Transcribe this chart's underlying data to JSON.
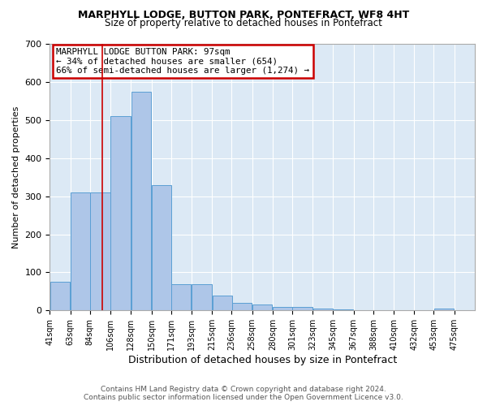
{
  "title1": "MARPHYLL LODGE, BUTTON PARK, PONTEFRACT, WF8 4HT",
  "title2": "Size of property relative to detached houses in Pontefract",
  "xlabel": "Distribution of detached houses by size in Pontefract",
  "ylabel": "Number of detached properties",
  "annotation_line1": "MARPHYLL LODGE BUTTON PARK: 97sqm",
  "annotation_line2": "← 34% of detached houses are smaller (654)",
  "annotation_line3": "66% of semi-detached houses are larger (1,274) →",
  "property_size": 97,
  "bar_left_edges": [
    41,
    63,
    84,
    106,
    128,
    150,
    171,
    193,
    215,
    236,
    258,
    280,
    301,
    323,
    345,
    367,
    388,
    410,
    432,
    453
  ],
  "bar_heights": [
    75,
    310,
    310,
    510,
    575,
    330,
    70,
    70,
    40,
    20,
    15,
    10,
    10,
    5,
    2,
    1,
    1,
    1,
    1,
    5
  ],
  "bin_width": 22,
  "bar_color": "#aec6e8",
  "bar_edge_color": "#5a9fd4",
  "vline_color": "#cc0000",
  "background_color": "#dce9f5",
  "grid_color": "#ffffff",
  "annotation_box_color": "#ffffff",
  "annotation_box_edge": "#cc0000",
  "ylim": [
    0,
    700
  ],
  "xlim": [
    41,
    497
  ],
  "tick_labels": [
    "41sqm",
    "63sqm",
    "84sqm",
    "106sqm",
    "128sqm",
    "150sqm",
    "171sqm",
    "193sqm",
    "215sqm",
    "236sqm",
    "258sqm",
    "280sqm",
    "301sqm",
    "323sqm",
    "345sqm",
    "367sqm",
    "388sqm",
    "410sqm",
    "432sqm",
    "453sqm",
    "475sqm"
  ],
  "tick_positions": [
    41,
    63,
    84,
    106,
    128,
    150,
    171,
    193,
    215,
    236,
    258,
    280,
    301,
    323,
    345,
    367,
    388,
    410,
    432,
    453,
    475
  ],
  "footer_line1": "Contains HM Land Registry data © Crown copyright and database right 2024.",
  "footer_line2": "Contains public sector information licensed under the Open Government Licence v3.0."
}
